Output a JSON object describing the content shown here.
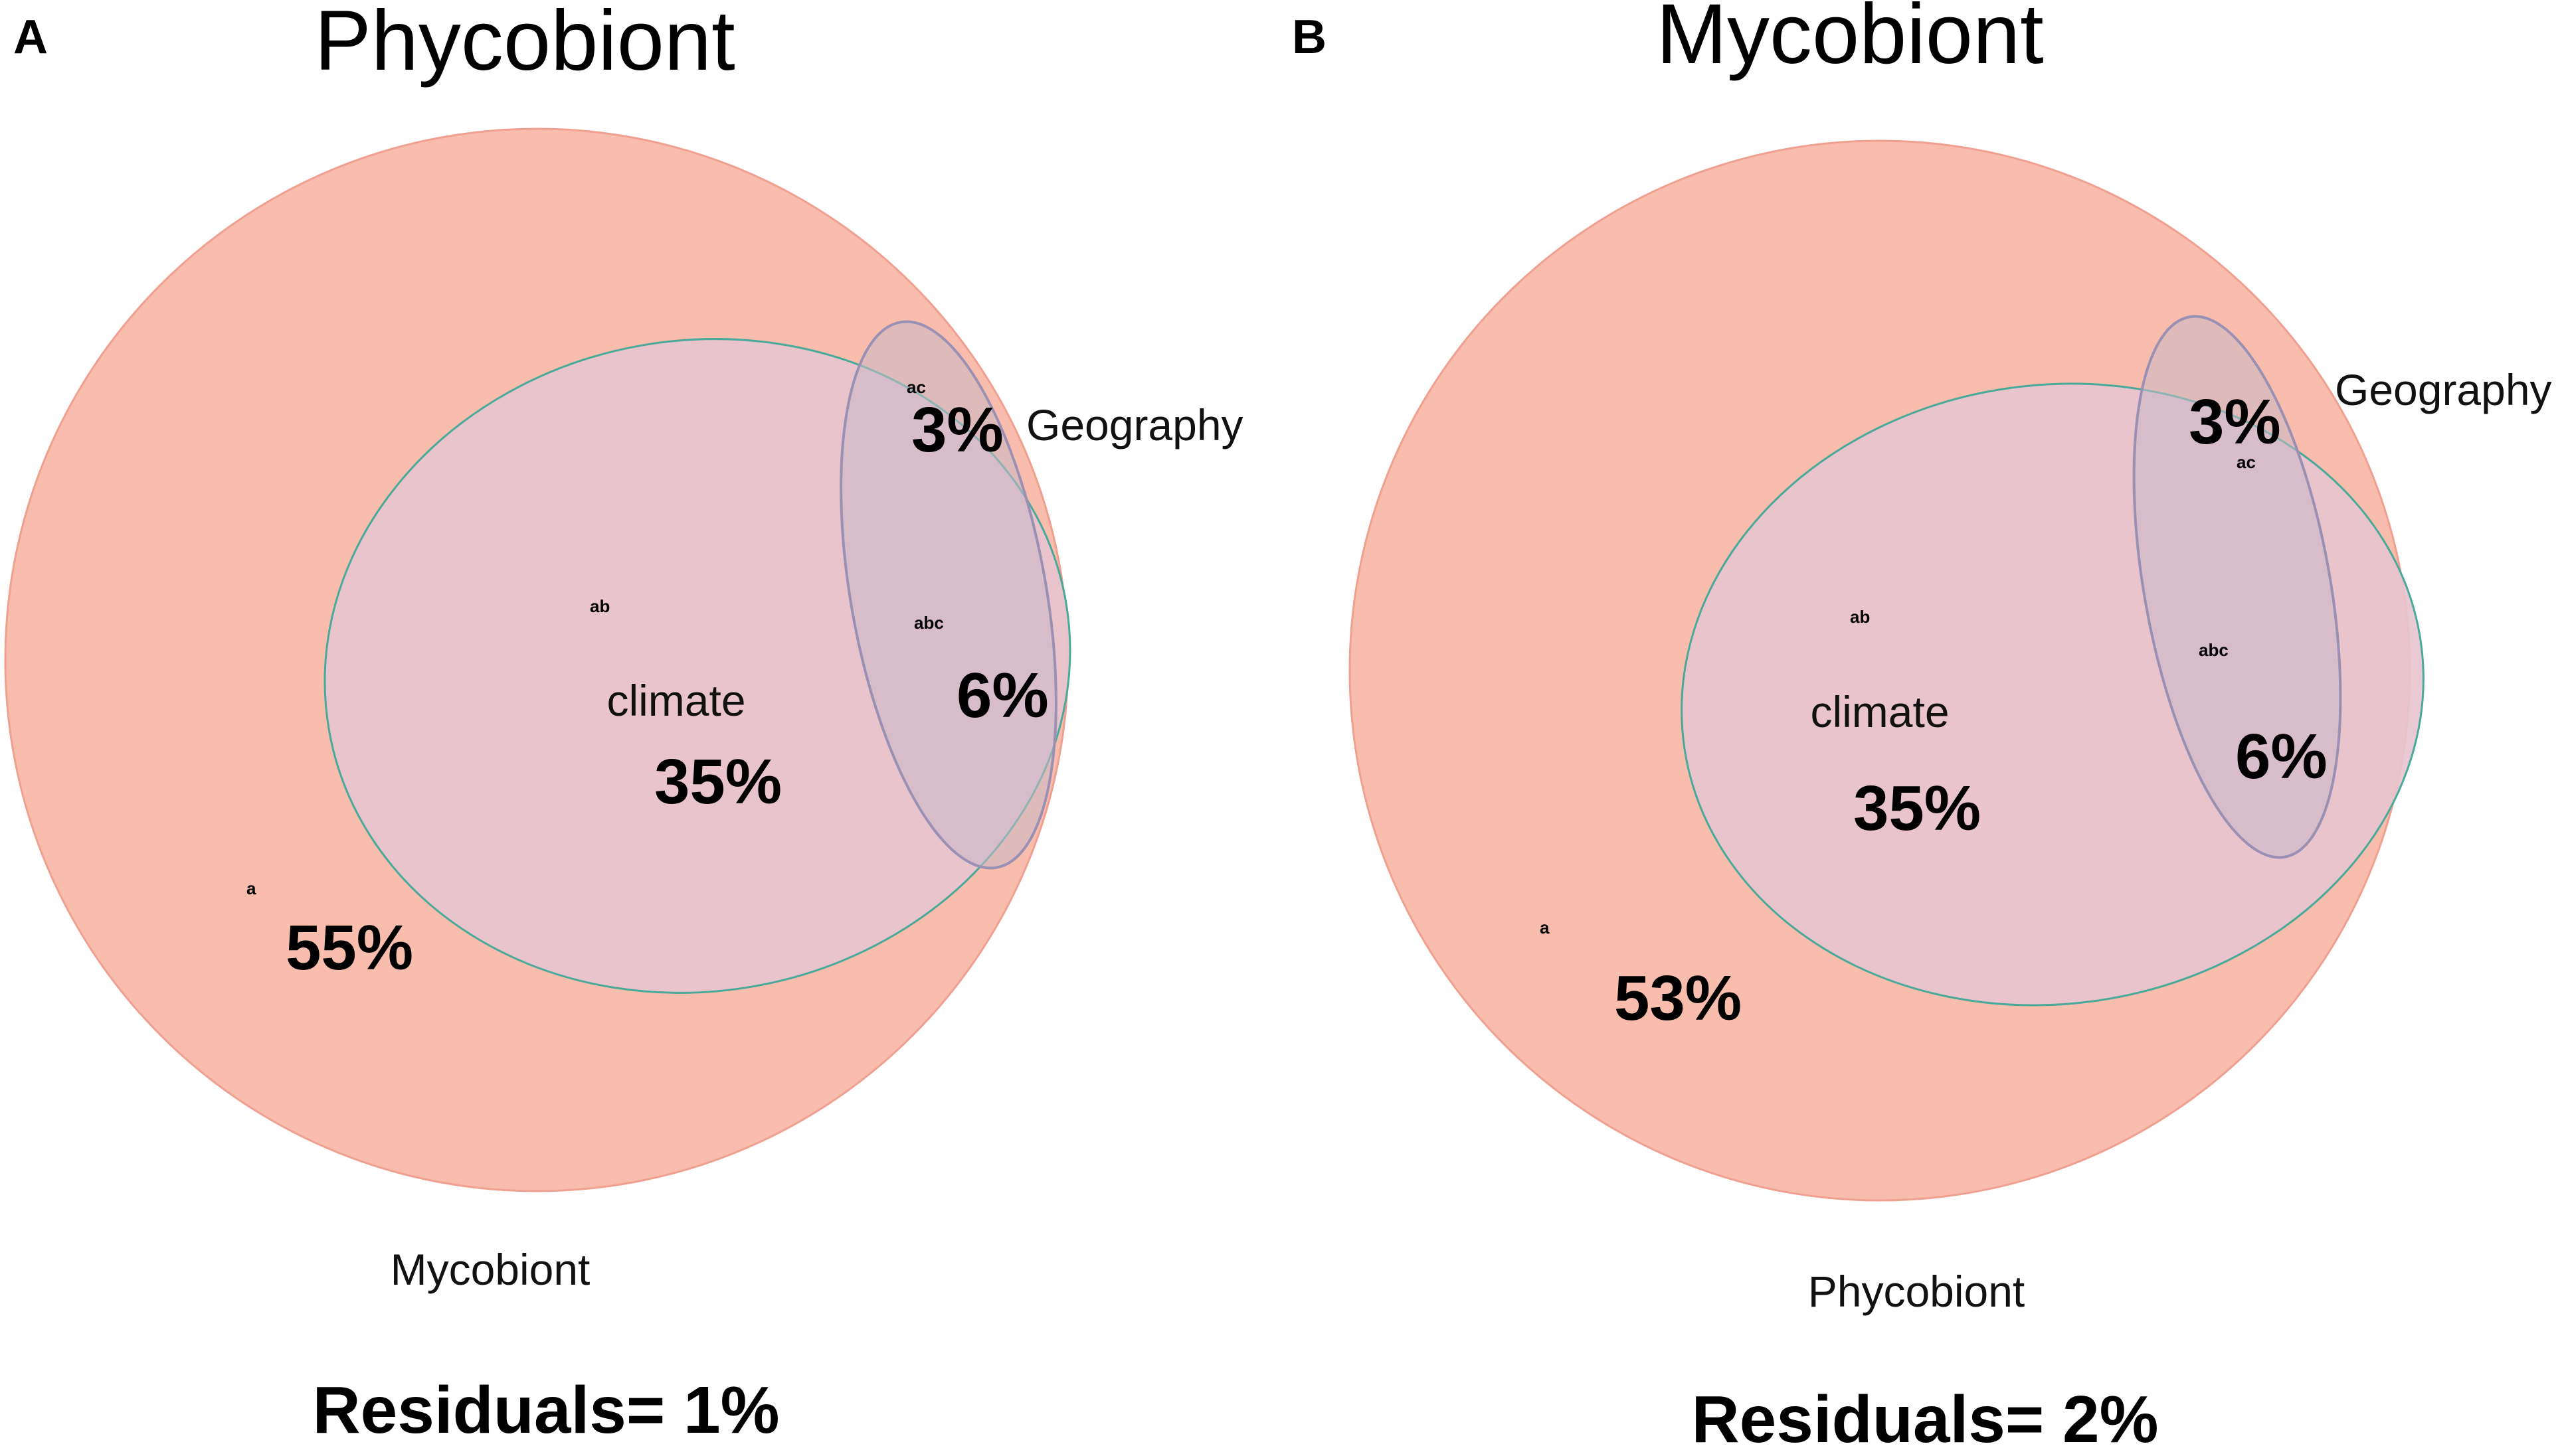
{
  "panels": [
    {
      "letter": "A",
      "title": "Phycobiont",
      "outer_label": "Mycobiont",
      "climate_label": "climate",
      "geography_label": "Geography",
      "region_a_tag": "a",
      "region_a_pct": "55%",
      "region_ab_tag": "ab",
      "region_ab_pct": "35%",
      "region_ac_tag": "ac",
      "region_ac_pct": "3%",
      "region_abc_tag": "abc",
      "region_abc_pct": "6%",
      "residuals": "Residuals= 1%"
    },
    {
      "letter": "B",
      "title": "Mycobiont",
      "outer_label": "Phycobiont",
      "climate_label": "climate",
      "geography_label": "Geography",
      "region_a_tag": "a",
      "region_a_pct": "53%",
      "region_ab_tag": "ab",
      "region_ab_pct": "35%",
      "region_ac_tag": "ac",
      "region_ac_pct": "3%",
      "region_abc_tag": "abc",
      "region_abc_pct": "6%",
      "residuals": "Residuals= 2%"
    }
  ],
  "colors": {
    "outer_fill": "#f9b9aa",
    "outer_stroke": "#f0a090",
    "climate_fill": "#e7c4cf",
    "climate_stroke": "#4aaa9a",
    "geo_fill": "#c8b8c6",
    "geo_stroke": "#9a90b4"
  }
}
